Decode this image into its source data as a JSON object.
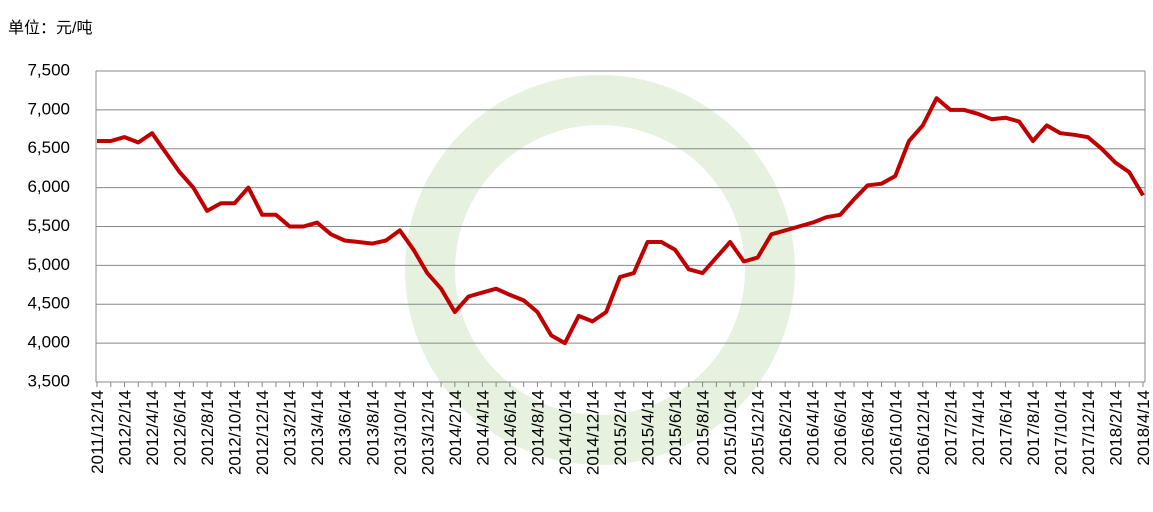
{
  "chart_data": {
    "type": "line",
    "unit_label": "单位：元/吨",
    "categories": [
      "2011/12/14",
      null,
      "2012/2/14",
      null,
      "2012/4/14",
      null,
      "2012/6/14",
      null,
      "2012/8/14",
      null,
      "2012/10/14",
      null,
      "2012/12/14",
      null,
      "2013/2/14",
      null,
      "2013/4/14",
      null,
      "2013/6/14",
      null,
      "2013/8/14",
      null,
      "2013/10/14",
      null,
      "2013/12/14",
      null,
      "2014/2/14",
      null,
      "2014/4/14",
      null,
      "2014/6/14",
      null,
      "2014/8/14",
      null,
      "2014/10/14",
      null,
      "2014/12/14",
      null,
      "2015/2/14",
      null,
      "2015/4/14",
      null,
      "2015/6/14",
      null,
      "2015/8/14",
      null,
      "2015/10/14",
      null,
      "2015/12/14",
      null,
      "2016/2/14",
      null,
      "2016/4/14",
      null,
      "2016/6/14",
      null,
      "2016/8/14",
      null,
      "2016/10/14",
      null,
      "2016/12/14",
      null,
      "2017/2/14",
      null,
      "2017/4/14",
      null,
      "2017/6/14",
      null,
      "2017/8/14",
      null,
      "2017/10/14",
      null,
      "2017/12/14",
      null,
      "2018/2/14",
      null,
      "2018/4/14"
    ],
    "values": [
      6600,
      6600,
      6650,
      6580,
      6700,
      6450,
      6200,
      6000,
      5700,
      5800,
      5800,
      6000,
      5650,
      5650,
      5500,
      5500,
      5550,
      5400,
      5320,
      5300,
      5280,
      5320,
      5450,
      5200,
      4900,
      4700,
      4400,
      4600,
      4650,
      4700,
      4620,
      4550,
      4400,
      4100,
      4000,
      4350,
      4280,
      4400,
      4850,
      4900,
      5300,
      5300,
      5200,
      4950,
      4900,
      5100,
      5300,
      5050,
      5100,
      5400,
      5450,
      5500,
      5550,
      5620,
      5650,
      5850,
      6030,
      6050,
      6150,
      6600,
      6800,
      7150,
      7000,
      7000,
      6950,
      6880,
      6900,
      6850,
      6600,
      6800,
      6700,
      6680,
      6650,
      6500,
      6320,
      6200,
      5900
    ],
    "color": "#c00000",
    "ylim": [
      3500,
      7500
    ],
    "yticks": [
      {
        "value": 3500,
        "label": "3,500"
      },
      {
        "value": 4000,
        "label": "4,000"
      },
      {
        "value": 4500,
        "label": "4,500"
      },
      {
        "value": 5000,
        "label": "5,000"
      },
      {
        "value": 5500,
        "label": "5,500"
      },
      {
        "value": 6000,
        "label": "6,000"
      },
      {
        "value": 6500,
        "label": "6,500"
      },
      {
        "value": 7000,
        "label": "7,000"
      },
      {
        "value": 7500,
        "label": "7,500"
      }
    ],
    "grid": true
  }
}
